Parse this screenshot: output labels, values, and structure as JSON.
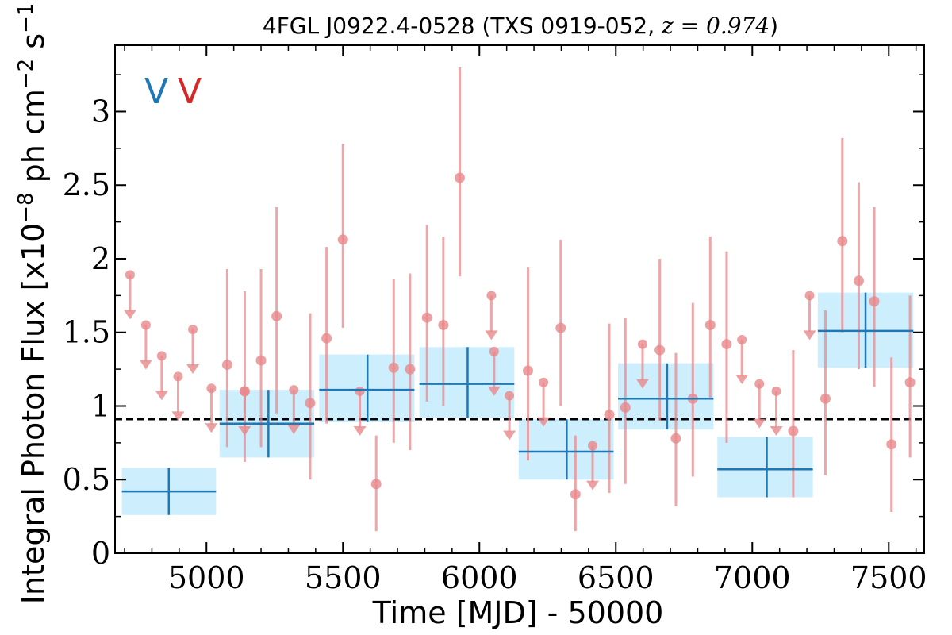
{
  "chart_data": {
    "type": "scatter",
    "title": "4FGL J0922.4-0528 (TXS 0919-052, z = 0.974)",
    "title_text": "4FGL J0922.4-0528 (TXS 0919-052, ",
    "title_math": "z = 0.974",
    "title_close": ")",
    "xlabel": "Time [MJD] - 50000",
    "ylabel": "Integral Photon Flux [x10",
    "ylabel_exp": "−8",
    "ylabel_mid": " ph cm",
    "ylabel_exp2": "−2",
    "ylabel_end": " s",
    "ylabel_exp3": "−1",
    "ylabel_close": "]",
    "xlim": [
      4665,
      7630
    ],
    "ylim": [
      0,
      3.45
    ],
    "x_ticks": [
      5000,
      5500,
      6000,
      6500,
      7000,
      7500
    ],
    "x_tick_labels": [
      "5000",
      "5500",
      "6000",
      "6500",
      "7000",
      "7500"
    ],
    "y_ticks": [
      0,
      0.5,
      1,
      1.5,
      2,
      2.5,
      3
    ],
    "y_tick_labels": [
      "0",
      "0.5",
      "1",
      "1.5",
      "2",
      "2.5",
      "3"
    ],
    "mean_flux": 0.91,
    "markers": [
      {
        "label": "V",
        "color": "#1f77b4"
      },
      {
        "label": "V",
        "color": "#d62728"
      }
    ],
    "colors": {
      "fine_series": "#e8888b",
      "coarse_series": "#1f77b4",
      "coarse_band": "#cdeefc",
      "mean_line": "#000000"
    },
    "grid": false,
    "series": [
      {
        "binning": "fine",
        "detections": [
          {
            "x": 5076,
            "y": 1.28,
            "lo": 0.72,
            "hi": 1.93
          },
          {
            "x": 5257,
            "y": 1.61,
            "lo": 0.95,
            "hi": 2.35
          },
          {
            "x": 5200,
            "y": 1.31,
            "lo": 0.72,
            "hi": 1.93
          },
          {
            "x": 5140,
            "y": 1.1,
            "lo": 0.62,
            "hi": 1.78
          },
          {
            "x": 5380,
            "y": 1.02,
            "lo": 0.5,
            "hi": 1.63
          },
          {
            "x": 5440,
            "y": 1.46,
            "lo": 0.88,
            "hi": 2.08
          },
          {
            "x": 5500,
            "y": 2.13,
            "lo": 1.53,
            "hi": 2.78
          },
          {
            "x": 5622,
            "y": 0.47,
            "lo": 0.15,
            "hi": 0.8
          },
          {
            "x": 5686,
            "y": 1.26,
            "lo": 0.75,
            "hi": 1.86
          },
          {
            "x": 5746,
            "y": 1.25,
            "lo": 0.7,
            "hi": 1.9
          },
          {
            "x": 5808,
            "y": 1.6,
            "lo": 1.03,
            "hi": 2.23
          },
          {
            "x": 5868,
            "y": 1.55,
            "lo": 1.0,
            "hi": 2.15
          },
          {
            "x": 5928,
            "y": 2.55,
            "lo": 1.88,
            "hi": 3.3
          },
          {
            "x": 6178,
            "y": 1.24,
            "lo": 0.63,
            "hi": 1.94
          },
          {
            "x": 6298,
            "y": 1.53,
            "lo": 1.0,
            "hi": 2.13
          },
          {
            "x": 6352,
            "y": 0.4,
            "lo": 0.15,
            "hi": 0.8
          },
          {
            "x": 6476,
            "y": 0.94,
            "lo": 0.41,
            "hi": 1.56
          },
          {
            "x": 6535,
            "y": 0.99,
            "lo": 0.47,
            "hi": 1.6
          },
          {
            "x": 6661,
            "y": 1.38,
            "lo": 0.9,
            "hi": 2.0
          },
          {
            "x": 6720,
            "y": 0.78,
            "lo": 0.32,
            "hi": 1.36
          },
          {
            "x": 6782,
            "y": 1.05,
            "lo": 0.52,
            "hi": 1.7
          },
          {
            "x": 6846,
            "y": 1.55,
            "lo": 1.05,
            "hi": 2.15
          },
          {
            "x": 6906,
            "y": 1.42,
            "lo": 0.75,
            "hi": 2.05
          },
          {
            "x": 7150,
            "y": 0.83,
            "lo": 0.38,
            "hi": 1.38
          },
          {
            "x": 7268,
            "y": 1.05,
            "lo": 0.53,
            "hi": 1.65
          },
          {
            "x": 7330,
            "y": 2.12,
            "lo": 1.5,
            "hi": 2.82
          },
          {
            "x": 7390,
            "y": 1.85,
            "lo": 1.25,
            "hi": 2.52
          },
          {
            "x": 7447,
            "y": 1.71,
            "lo": 1.13,
            "hi": 2.35
          },
          {
            "x": 7510,
            "y": 0.74,
            "lo": 0.28,
            "hi": 1.33
          },
          {
            "x": 7578,
            "y": 1.16,
            "lo": 0.65,
            "hi": 1.75
          }
        ],
        "upper_limits": [
          {
            "x": 4720,
            "y": 1.89
          },
          {
            "x": 4778,
            "y": 1.55
          },
          {
            "x": 4836,
            "y": 1.34
          },
          {
            "x": 4896,
            "y": 1.2
          },
          {
            "x": 4950,
            "y": 1.52
          },
          {
            "x": 5018,
            "y": 1.12
          },
          {
            "x": 5140,
            "y": 1.1
          },
          {
            "x": 5320,
            "y": 1.11
          },
          {
            "x": 5562,
            "y": 1.1
          },
          {
            "x": 6044,
            "y": 1.75
          },
          {
            "x": 6054,
            "y": 1.37
          },
          {
            "x": 6110,
            "y": 1.07
          },
          {
            "x": 6235,
            "y": 1.16
          },
          {
            "x": 6415,
            "y": 0.73
          },
          {
            "x": 6598,
            "y": 1.42
          },
          {
            "x": 6962,
            "y": 1.45
          },
          {
            "x": 7026,
            "y": 1.15
          },
          {
            "x": 7088,
            "y": 1.1
          },
          {
            "x": 7210,
            "y": 1.75
          }
        ]
      },
      {
        "binning": "coarse",
        "points": [
          {
            "x": 4862,
            "y": 0.42,
            "x0": 4690,
            "x1": 5035,
            "lo": 0.26,
            "hi": 0.58
          },
          {
            "x": 5227,
            "y": 0.88,
            "x0": 5048,
            "x1": 5395,
            "lo": 0.65,
            "hi": 1.11
          },
          {
            "x": 5590,
            "y": 1.11,
            "x0": 5413,
            "x1": 5762,
            "lo": 0.89,
            "hi": 1.35
          },
          {
            "x": 5957,
            "y": 1.15,
            "x0": 5780,
            "x1": 6128,
            "lo": 0.92,
            "hi": 1.4
          },
          {
            "x": 6320,
            "y": 0.69,
            "x0": 6144,
            "x1": 6492,
            "lo": 0.5,
            "hi": 0.91
          },
          {
            "x": 6688,
            "y": 1.05,
            "x0": 6508,
            "x1": 6858,
            "lo": 0.84,
            "hi": 1.29
          },
          {
            "x": 7053,
            "y": 0.57,
            "x0": 6872,
            "x1": 7222,
            "lo": 0.38,
            "hi": 0.79
          },
          {
            "x": 7415,
            "y": 1.51,
            "x0": 7240,
            "x1": 7590,
            "lo": 1.26,
            "hi": 1.77
          }
        ]
      }
    ]
  }
}
